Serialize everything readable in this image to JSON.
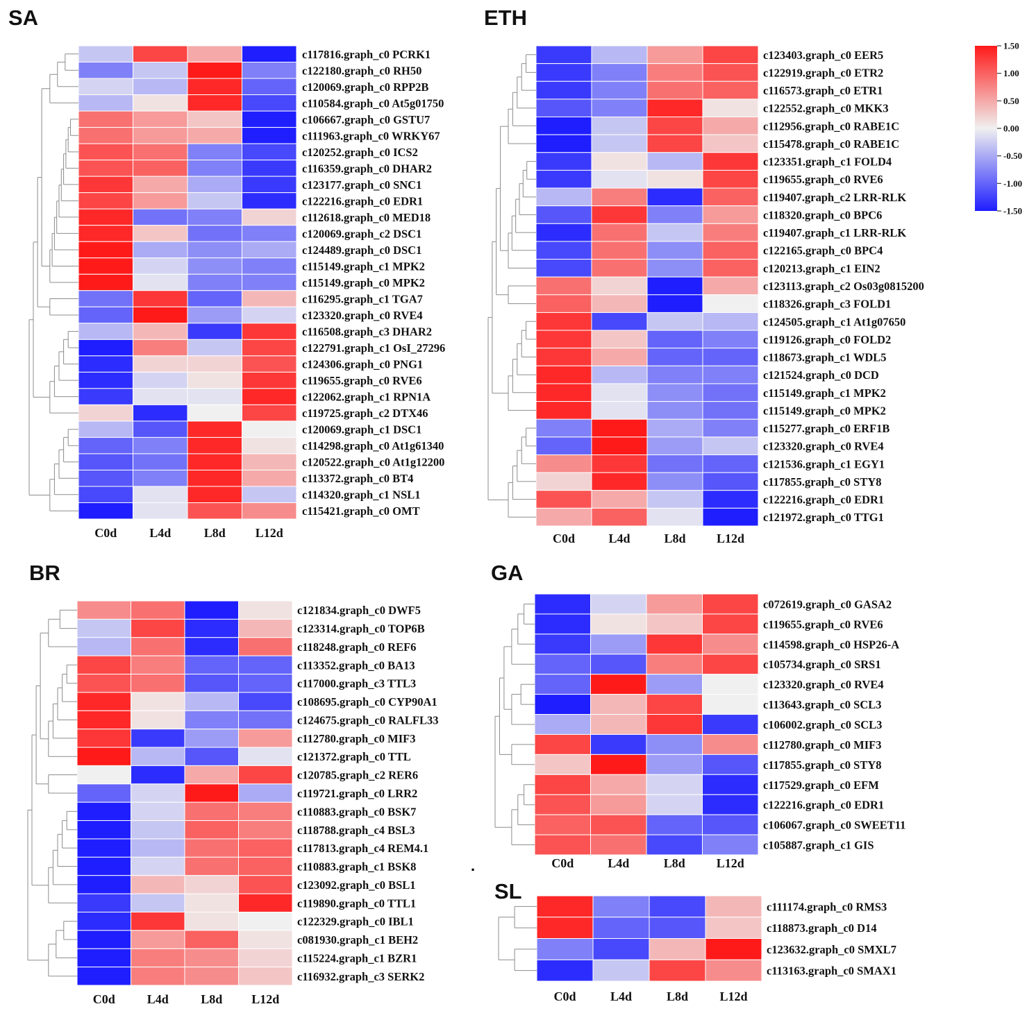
{
  "chart_data": [
    {
      "type": "heatmap",
      "title": "SA",
      "columns": [
        "C0d",
        "L4d",
        "L8d",
        "L12d"
      ],
      "rows": [
        {
          "label": "c117816.graph_c0 PCRK1",
          "values": [
            -0.3,
            1.2,
            0.5,
            -1.5
          ]
        },
        {
          "label": "c122180.graph_c0 RH50",
          "values": [
            -0.8,
            -0.3,
            1.5,
            -0.8
          ]
        },
        {
          "label": "c120069.graph_c0 RPP2B",
          "values": [
            -0.2,
            -0.4,
            1.4,
            -1.0
          ]
        },
        {
          "label": "c110584.graph_c0 At5g01750",
          "values": [
            -0.4,
            0.1,
            1.4,
            -1.2
          ]
        },
        {
          "label": "c106667.graph_c0 GSTU7",
          "values": [
            0.9,
            0.6,
            0.3,
            -1.5
          ]
        },
        {
          "label": "c111963.graph_c0 WRKY67",
          "values": [
            0.9,
            0.6,
            0.5,
            -1.5
          ]
        },
        {
          "label": "c120252.graph_c0 ICS2",
          "values": [
            1.1,
            0.9,
            -0.8,
            -1.2
          ]
        },
        {
          "label": "c116359.graph_c0 DHAR2",
          "values": [
            1.1,
            1.0,
            -0.8,
            -1.3
          ]
        },
        {
          "label": "c123177.graph_c0 SNC1",
          "values": [
            1.3,
            0.5,
            -0.5,
            -1.3
          ]
        },
        {
          "label": "c122216.graph_c0 EDR1",
          "values": [
            1.2,
            0.6,
            -0.3,
            -1.4
          ]
        },
        {
          "label": "c112618.graph_c0 MED18",
          "values": [
            1.4,
            -0.9,
            -0.8,
            0.2
          ]
        },
        {
          "label": "c120069.graph_c2 DSC1",
          "values": [
            1.4,
            0.3,
            -0.9,
            -0.8
          ]
        },
        {
          "label": "c124489.graph_c0 DSC1",
          "values": [
            1.5,
            -0.5,
            -0.7,
            -0.5
          ]
        },
        {
          "label": "c115149.graph_c1 MPK2",
          "values": [
            1.5,
            -0.2,
            -0.7,
            -0.8
          ]
        },
        {
          "label": "c115149.graph_c0 MPK2",
          "values": [
            1.5,
            -0.1,
            -0.8,
            -0.8
          ]
        },
        {
          "label": "c116295.graph_c1 TGA7",
          "values": [
            -0.9,
            1.3,
            -1.0,
            0.4
          ]
        },
        {
          "label": "c123320.graph_c0 RVE4",
          "values": [
            -1.0,
            1.5,
            -0.6,
            -0.2
          ]
        },
        {
          "label": "c116508.graph_c3 DHAR2",
          "values": [
            -0.4,
            0.4,
            -1.3,
            1.3
          ]
        },
        {
          "label": "c122791.graph_c1 OsI_27296",
          "values": [
            -1.5,
            0.8,
            -0.3,
            1.2
          ]
        },
        {
          "label": "c124306.graph_c0 PNG1",
          "values": [
            -1.4,
            0.2,
            0.2,
            1.1
          ]
        },
        {
          "label": "c119655.graph_c0 RVE6",
          "values": [
            -1.4,
            -0.2,
            0.1,
            1.3
          ]
        },
        {
          "label": "c122062.graph_c1 RPN1A",
          "values": [
            -1.3,
            -0.1,
            -0.1,
            1.4
          ]
        },
        {
          "label": "c119725.graph_c2 DTX46",
          "values": [
            0.2,
            -1.4,
            0.0,
            1.2
          ]
        },
        {
          "label": "c120069.graph_c1 DSC1",
          "values": [
            -0.4,
            -1.1,
            1.4,
            0.0
          ]
        },
        {
          "label": "c114298.graph_c0 At1g61340",
          "values": [
            -1.0,
            -0.8,
            1.4,
            0.1
          ]
        },
        {
          "label": "c120522.graph_c0 At1g12200",
          "values": [
            -1.1,
            -0.9,
            1.4,
            0.4
          ]
        },
        {
          "label": "c113372.graph_c0 BT4",
          "values": [
            -1.1,
            -0.8,
            1.4,
            0.5
          ]
        },
        {
          "label": "c114320.graph_c1 NSL1",
          "values": [
            -1.2,
            -0.1,
            1.4,
            -0.3
          ]
        },
        {
          "label": "c115421.graph_c0 OMT",
          "values": [
            -1.5,
            -0.1,
            1.1,
            0.7
          ]
        }
      ],
      "dendrogram_order": [
        [
          0,
          1,
          2,
          3
        ],
        [
          4,
          5,
          6,
          7,
          8,
          9,
          10,
          11,
          12,
          13,
          14
        ],
        [
          15,
          16
        ],
        [
          17,
          18,
          19,
          20,
          21,
          22
        ],
        [
          23,
          24,
          25,
          26,
          27,
          28
        ]
      ]
    },
    {
      "type": "heatmap",
      "title": "ETH",
      "columns": [
        "C0d",
        "L4d",
        "L8d",
        "L12d"
      ],
      "rows": [
        {
          "label": "c123403.graph_c0 EER5",
          "values": [
            -1.3,
            -0.4,
            0.6,
            1.2
          ]
        },
        {
          "label": "c122919.graph_c0 ETR2",
          "values": [
            -1.3,
            -0.8,
            0.8,
            1.1
          ]
        },
        {
          "label": "c116573.graph_c0 ETR1",
          "values": [
            -1.3,
            -0.8,
            0.9,
            1.0
          ]
        },
        {
          "label": "c122552.graph_c0 MKK3",
          "values": [
            -1.1,
            -0.8,
            1.4,
            0.1
          ]
        },
        {
          "label": "c112956.graph_c0 RABE1C",
          "values": [
            -1.5,
            -0.3,
            1.2,
            0.5
          ]
        },
        {
          "label": "c115478.graph_c0 RABE1C",
          "values": [
            -1.5,
            -0.3,
            1.2,
            0.3
          ]
        },
        {
          "label": "c123351.graph_c1 FOLD4",
          "values": [
            -1.3,
            0.1,
            -0.4,
            1.3
          ]
        },
        {
          "label": "c119655.graph_c0 RVE6",
          "values": [
            -1.3,
            -0.1,
            0.1,
            1.2
          ]
        },
        {
          "label": "c119407.graph_c2 LRR-RLK",
          "values": [
            -0.4,
            0.8,
            -1.4,
            1.0
          ]
        },
        {
          "label": "c118320.graph_c0 BPC6",
          "values": [
            -1.1,
            1.3,
            -0.8,
            0.6
          ]
        },
        {
          "label": "c119407.graph_c1 LRR-RLK",
          "values": [
            -1.4,
            0.9,
            -0.3,
            0.8
          ]
        },
        {
          "label": "c122165.graph_c0 BPC4",
          "values": [
            -1.2,
            0.9,
            -0.7,
            1.0
          ]
        },
        {
          "label": "c120213.graph_c1 EIN2",
          "values": [
            -1.2,
            0.9,
            -0.7,
            1.0
          ]
        },
        {
          "label": "c123113.graph_c2 Os03g0815200",
          "values": [
            0.9,
            0.2,
            -1.5,
            0.5
          ]
        },
        {
          "label": "c118326.graph_c3 FOLD1",
          "values": [
            1.0,
            0.4,
            -1.5,
            0.0
          ]
        },
        {
          "label": "c124505.graph_c1 At1g07650",
          "values": [
            1.3,
            -1.2,
            -0.3,
            -0.4
          ]
        },
        {
          "label": "c119126.graph_c0 FOLD2",
          "values": [
            1.3,
            0.3,
            -1.0,
            -0.8
          ]
        },
        {
          "label": "c118673.graph_c1 WDL5",
          "values": [
            1.3,
            0.5,
            -1.0,
            -1.0
          ]
        },
        {
          "label": "c121524.graph_c0 DCD",
          "values": [
            1.4,
            -0.4,
            -0.8,
            -0.8
          ]
        },
        {
          "label": "c115149.graph_c1 MPK2",
          "values": [
            1.4,
            -0.1,
            -0.7,
            -0.9
          ]
        },
        {
          "label": "c115149.graph_c0 MPK2",
          "values": [
            1.4,
            -0.1,
            -0.7,
            -0.9
          ]
        },
        {
          "label": "c115277.graph_c0 ERF1B",
          "values": [
            -0.8,
            1.5,
            -0.5,
            -0.8
          ]
        },
        {
          "label": "c123320.graph_c0 RVE4",
          "values": [
            -1.0,
            1.5,
            -0.6,
            -0.3
          ]
        },
        {
          "label": "c121536.graph_c1 EGY1",
          "values": [
            0.7,
            1.3,
            -0.9,
            -1.0
          ]
        },
        {
          "label": "c117855.graph_c0 STY8",
          "values": [
            0.2,
            1.4,
            -0.7,
            -1.1
          ]
        },
        {
          "label": "c122216.graph_c0 EDR1",
          "values": [
            1.1,
            0.5,
            -0.3,
            -1.4
          ]
        },
        {
          "label": "c121972.graph_c0 TTG1",
          "values": [
            0.5,
            1.0,
            -0.1,
            -1.5
          ]
        }
      ],
      "dendrogram_order": [
        [
          0,
          1,
          2,
          3,
          4,
          5
        ],
        [
          6,
          7,
          8,
          9,
          10,
          11,
          12
        ],
        [
          13,
          14
        ],
        [
          15,
          16,
          17,
          18,
          19,
          20
        ],
        [
          21,
          22,
          23,
          24,
          25,
          26
        ]
      ]
    },
    {
      "type": "heatmap",
      "title": "BR",
      "columns": [
        "C0d",
        "L4d",
        "L8d",
        "L12d"
      ],
      "rows": [
        {
          "label": "c121834.graph_c0 DWF5",
          "values": [
            0.7,
            0.9,
            -1.5,
            0.1
          ]
        },
        {
          "label": "c123314.graph_c0 TOP6B",
          "values": [
            -0.3,
            1.2,
            -1.4,
            0.4
          ]
        },
        {
          "label": "c118248.graph_c0 REF6",
          "values": [
            -0.4,
            0.9,
            -1.4,
            0.9
          ]
        },
        {
          "label": "c113352.graph_c0 BA13",
          "values": [
            1.2,
            0.8,
            -1.0,
            -1.0
          ]
        },
        {
          "label": "c117000.graph_c3 TTL3",
          "values": [
            1.1,
            0.9,
            -1.1,
            -1.0
          ]
        },
        {
          "label": "c108695.graph_c0 CYP90A1",
          "values": [
            1.4,
            0.1,
            -0.4,
            -1.2
          ]
        },
        {
          "label": "c124675.graph_c0 RALFL33",
          "values": [
            1.4,
            0.1,
            -0.8,
            -0.9
          ]
        },
        {
          "label": "c112780.graph_c0 MIF3",
          "values": [
            1.3,
            -1.3,
            -0.6,
            0.6
          ]
        },
        {
          "label": "c121372.graph_c0 TTL",
          "values": [
            1.5,
            -0.4,
            -1.1,
            -0.1
          ]
        },
        {
          "label": "c120785.graph_c2 RER6",
          "values": [
            0.0,
            -1.4,
            0.5,
            1.2
          ]
        },
        {
          "label": "c119721.graph_c0 LRR2",
          "values": [
            -1.0,
            -0.2,
            1.5,
            -0.5
          ]
        },
        {
          "label": "c110883.graph_c0 BSK7",
          "values": [
            -1.5,
            -0.2,
            0.9,
            0.8
          ]
        },
        {
          "label": "c118788.graph_c4 BSL3",
          "values": [
            -1.5,
            -0.3,
            1.0,
            0.8
          ]
        },
        {
          "label": "c117813.graph_c4 REM4.1",
          "values": [
            -1.5,
            -0.4,
            0.9,
            1.0
          ]
        },
        {
          "label": "c110883.graph_c1 BSK8",
          "values": [
            -1.5,
            -0.2,
            0.9,
            1.0
          ]
        },
        {
          "label": "c123092.graph_c0 BSL1",
          "values": [
            -1.5,
            0.4,
            0.2,
            1.1
          ]
        },
        {
          "label": "c119890.graph_c0 TTL1",
          "values": [
            -1.3,
            -0.3,
            0.1,
            1.4
          ]
        },
        {
          "label": "c122329.graph_c0 IBL1",
          "values": [
            -1.4,
            1.3,
            0.1,
            0.0
          ]
        },
        {
          "label": "c081930.graph_c1 BEH2",
          "values": [
            -1.5,
            0.6,
            1.0,
            0.1
          ]
        },
        {
          "label": "c115224.graph_c1 BZR1",
          "values": [
            -1.5,
            0.8,
            0.7,
            0.2
          ]
        },
        {
          "label": "c116932.graph_c3 SERK2",
          "values": [
            -1.5,
            0.8,
            0.7,
            0.3
          ]
        }
      ],
      "dendrogram_order": [
        [
          0,
          1,
          2
        ],
        [
          3,
          4,
          5,
          6,
          7,
          8
        ],
        [
          9,
          10
        ],
        [
          11,
          12,
          13,
          14,
          15,
          16
        ],
        [
          17,
          18,
          19,
          20
        ]
      ]
    },
    {
      "type": "heatmap",
      "title": "GA",
      "columns": [
        "C0d",
        "L4d",
        "L8d",
        "L12d"
      ],
      "rows": [
        {
          "label": "c072619.graph_c0 GASA2",
          "values": [
            -1.4,
            -0.2,
            0.6,
            1.2
          ]
        },
        {
          "label": "c119655.graph_c0 RVE6",
          "values": [
            -1.4,
            0.1,
            0.3,
            1.2
          ]
        },
        {
          "label": "c114598.graph_c0 HSP26-A",
          "values": [
            -1.3,
            -0.6,
            1.3,
            0.7
          ]
        },
        {
          "label": "c105734.graph_c0 SRS1",
          "values": [
            -1.0,
            -1.1,
            0.8,
            1.2
          ]
        },
        {
          "label": "c123320.graph_c0 RVE4",
          "values": [
            -1.0,
            1.5,
            -0.6,
            0.0
          ]
        },
        {
          "label": "c113643.graph_c0 SCL3",
          "values": [
            -1.5,
            0.4,
            1.2,
            0.0
          ]
        },
        {
          "label": "c106002.graph_c0 SCL3",
          "values": [
            -0.5,
            0.4,
            1.3,
            -1.3
          ]
        },
        {
          "label": "c112780.graph_c0 MIF3",
          "values": [
            1.2,
            -1.3,
            -0.7,
            0.7
          ]
        },
        {
          "label": "c117855.graph_c0 STY8",
          "values": [
            0.3,
            1.5,
            -0.6,
            -1.1
          ]
        },
        {
          "label": "c117529.graph_c0 EFM",
          "values": [
            1.2,
            0.5,
            -0.2,
            -1.4
          ]
        },
        {
          "label": "c122216.graph_c0 EDR1",
          "values": [
            1.1,
            0.6,
            -0.2,
            -1.4
          ]
        },
        {
          "label": "c106067.graph_c0 SWEET11",
          "values": [
            1.0,
            1.1,
            -1.0,
            -1.1
          ]
        },
        {
          "label": "c105887.graph_c1 GIS",
          "values": [
            1.1,
            0.9,
            -1.2,
            -0.8
          ]
        }
      ],
      "dendrogram_order": [
        [
          0,
          1,
          2,
          3
        ],
        [
          4,
          5,
          6
        ],
        [
          7,
          8
        ],
        [
          9,
          10,
          11,
          12
        ]
      ]
    },
    {
      "type": "heatmap",
      "title": "SL",
      "columns": [
        "C0d",
        "L4d",
        "L8d",
        "L12d"
      ],
      "rows": [
        {
          "label": "c111174.graph_c0 RMS3",
          "values": [
            1.4,
            -0.8,
            -1.2,
            0.4
          ]
        },
        {
          "label": "c118873.graph_c0 D14",
          "values": [
            1.4,
            -1.0,
            -1.1,
            0.3
          ]
        },
        {
          "label": "c123632.graph_c0 SMXL7",
          "values": [
            -0.8,
            -1.2,
            0.4,
            1.5
          ]
        },
        {
          "label": "c113163.graph_c0 SMAX1",
          "values": [
            -1.4,
            -0.3,
            1.2,
            0.7
          ]
        }
      ],
      "dendrogram_order": [
        [
          0,
          1
        ],
        [
          2,
          3
        ]
      ]
    }
  ],
  "color_scale": {
    "min": -1.5,
    "max": 1.5,
    "low_color": "#1e1eff",
    "mid_color": "#f0f0f0",
    "high_color": "#ff1a1a",
    "ticks": [
      "1.50",
      "1.00",
      "0.50",
      "0.00",
      "-0.50",
      "-1.00",
      "-1.50"
    ]
  },
  "stray_mark": "."
}
